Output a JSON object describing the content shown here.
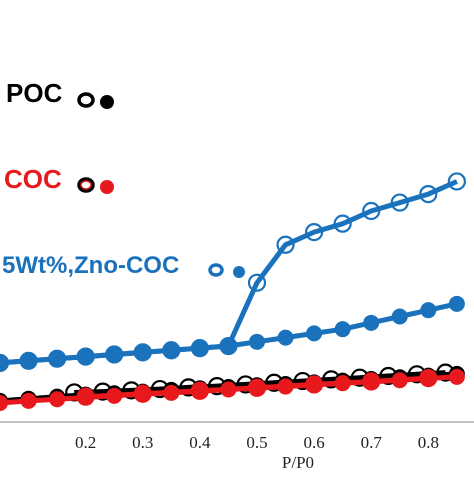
{
  "chart_data": {
    "type": "scatter",
    "title": "",
    "xlabel": "P/P0",
    "ylabel": "",
    "xlim": [
      0.05,
      0.88
    ],
    "ylim": [
      0.0,
      1.0
    ],
    "x_ticks": [
      "0.2",
      "0.3",
      "0.4",
      "0.5",
      "0.6",
      "0.7",
      "0.8"
    ],
    "grid": false,
    "series": [
      {
        "name": "POC",
        "color": "#000000",
        "marker": "open+filled circle",
        "adsorption": {
          "x": [
            0.05,
            0.1,
            0.15,
            0.2,
            0.25,
            0.3,
            0.35,
            0.4,
            0.45,
            0.5,
            0.55,
            0.6,
            0.65,
            0.7,
            0.75,
            0.8,
            0.85
          ],
          "y": [
            0.05,
            0.055,
            0.06,
            0.065,
            0.068,
            0.072,
            0.076,
            0.08,
            0.083,
            0.087,
            0.09,
            0.094,
            0.098,
            0.102,
            0.106,
            0.11,
            0.114
          ]
        },
        "desorption": {
          "x": [
            0.18,
            0.23,
            0.28,
            0.33,
            0.38,
            0.43,
            0.48,
            0.53,
            0.58,
            0.63,
            0.68,
            0.73,
            0.78,
            0.83
          ],
          "y": [
            0.07,
            0.072,
            0.075,
            0.078,
            0.082,
            0.085,
            0.089,
            0.093,
            0.097,
            0.101,
            0.105,
            0.109,
            0.113,
            0.117
          ]
        }
      },
      {
        "name": "COC",
        "color": "#e8191c",
        "marker": "open+filled circle",
        "adsorption": {
          "x": [
            0.05,
            0.1,
            0.15,
            0.2,
            0.25,
            0.3,
            0.35,
            0.4,
            0.45,
            0.5,
            0.55,
            0.6,
            0.65,
            0.7,
            0.75,
            0.8,
            0.85
          ],
          "y": [
            0.045,
            0.05,
            0.054,
            0.058,
            0.062,
            0.066,
            0.069,
            0.073,
            0.077,
            0.08,
            0.084,
            0.088,
            0.092,
            0.095,
            0.099,
            0.103,
            0.107
          ]
        },
        "desorption": {
          "x": [
            0.2,
            0.3,
            0.4,
            0.5,
            0.6,
            0.7,
            0.8
          ],
          "y": [
            0.06,
            0.067,
            0.074,
            0.081,
            0.089,
            0.096,
            0.104
          ]
        }
      },
      {
        "name": "5Wt%,Zno-COC",
        "color": "#1a72bd",
        "marker": "open+filled circle",
        "adsorption": {
          "x": [
            0.05,
            0.1,
            0.15,
            0.2,
            0.25,
            0.3,
            0.35,
            0.4,
            0.45,
            0.5,
            0.55,
            0.6,
            0.65,
            0.7,
            0.75,
            0.8,
            0.85
          ],
          "y": [
            0.14,
            0.145,
            0.15,
            0.155,
            0.16,
            0.165,
            0.17,
            0.175,
            0.18,
            0.19,
            0.2,
            0.21,
            0.22,
            0.235,
            0.25,
            0.265,
            0.28
          ]
        },
        "desorption": {
          "x": [
            0.05,
            0.1,
            0.15,
            0.2,
            0.25,
            0.3,
            0.35,
            0.4,
            0.45,
            0.5,
            0.55,
            0.6,
            0.65,
            0.7,
            0.75,
            0.8,
            0.85
          ],
          "y": [
            0.14,
            0.145,
            0.15,
            0.155,
            0.16,
            0.165,
            0.17,
            0.175,
            0.18,
            0.33,
            0.42,
            0.45,
            0.47,
            0.5,
            0.52,
            0.54,
            0.57
          ]
        }
      }
    ]
  }
}
